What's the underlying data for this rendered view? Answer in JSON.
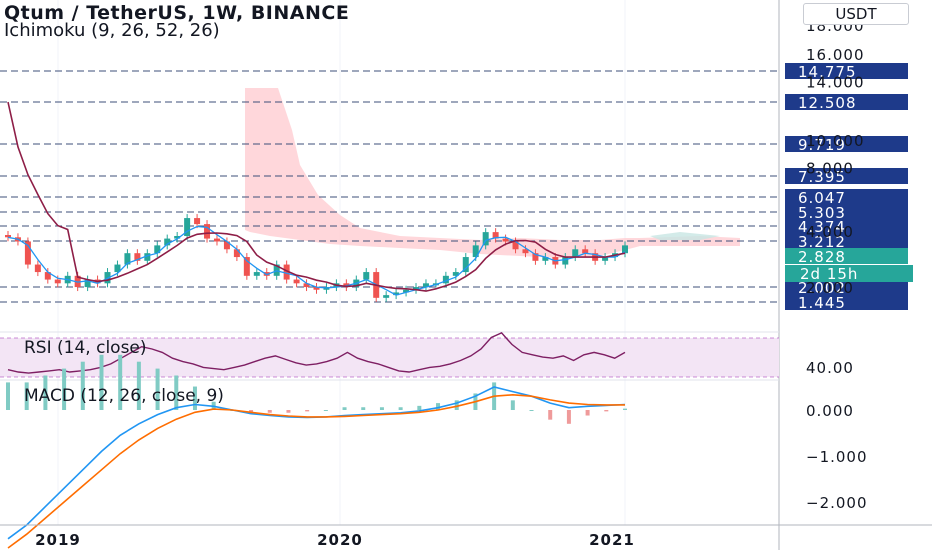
{
  "header": {
    "title": "Qtum / TetherUS, 1W, BINANCE",
    "indicator": "Ichimoku (9, 26, 52, 26)",
    "currency": "USDT"
  },
  "rsi": {
    "label": "RSI (14, close)",
    "tick": "40.00"
  },
  "macd": {
    "label": "MACD (12, 26, close, 9)"
  },
  "colors": {
    "cloud": "#ffcdd2",
    "rsi_band": "#f3e5f5",
    "tenkan": "#2196f3",
    "kijun": "#8e1e47",
    "bull": "#26a69a",
    "bear": "#ef5350",
    "label_bg": "#1e3a8a",
    "price_bg": "#26a69a",
    "macd_line": "#2196f3",
    "signal_line": "#ff6d00"
  },
  "chart_data": [
    {
      "type": "candlestick",
      "name": "Qtum / TetherUS weekly price with Ichimoku",
      "x_ticks": [
        "2019",
        "2020",
        "2021"
      ],
      "y_ticks": [
        "18.000",
        "16.000",
        "14.000",
        "10.000",
        "8.000",
        "4.000",
        "2.000"
      ],
      "levels": [
        "14.775",
        "12.508",
        "9.719",
        "7.395",
        "6.047",
        "5.303",
        "4.374",
        "3.212",
        "2.002",
        "1.445"
      ],
      "last_price": "2.828",
      "countdown": "2d 15h",
      "close_path": [
        3.5,
        3.2,
        2.6,
        2.4,
        2.2,
        2.1,
        2.3,
        2.0,
        2.2,
        2.1,
        2.4,
        2.6,
        2.9,
        2.7,
        2.9,
        3.1,
        3.4,
        3.6,
        4.9,
        4.5,
        3.4,
        3.2,
        3.0,
        2.8,
        2.3,
        2.4,
        2.3,
        2.6,
        2.2,
        2.1,
        2.0,
        1.9,
        2.0,
        2.1,
        2.0,
        2.2,
        2.4,
        1.6,
        1.7,
        1.8,
        1.9,
        2.0,
        2.1,
        2.1,
        2.3,
        2.4,
        2.8,
        3.1,
        3.9,
        3.4,
        3.2,
        3.0,
        2.9,
        2.7,
        2.8,
        2.6,
        2.8,
        3.0,
        2.9,
        2.7,
        2.8,
        2.9,
        3.1
      ]
    },
    {
      "type": "line",
      "name": "RSI",
      "y_ticks": [
        "40.00"
      ],
      "values": [
        40,
        38,
        37,
        38,
        39,
        40,
        38,
        39,
        40,
        42,
        45,
        50,
        55,
        60,
        58,
        55,
        50,
        47,
        45,
        42,
        41,
        40,
        42,
        44,
        47,
        50,
        52,
        49,
        46,
        44,
        45,
        47,
        50,
        55,
        50,
        47,
        45,
        42,
        39,
        38,
        40,
        42,
        43,
        45,
        48,
        52,
        58,
        68,
        72,
        62,
        55,
        53,
        51,
        50,
        52,
        48,
        53,
        55,
        53,
        50,
        55
      ]
    },
    {
      "type": "line",
      "name": "MACD",
      "y_ticks": [
        "0.000",
        "−1.000",
        "−2.000"
      ],
      "macd": [
        -2.8,
        -2.5,
        -2.1,
        -1.7,
        -1.3,
        -0.9,
        -0.55,
        -0.3,
        -0.1,
        0.05,
        0.12,
        0.08,
        0.0,
        -0.08,
        -0.12,
        -0.15,
        -0.16,
        -0.15,
        -0.12,
        -0.1,
        -0.08,
        -0.06,
        -0.02,
        0.05,
        0.15,
        0.3,
        0.5,
        0.4,
        0.3,
        0.15,
        0.05,
        0.08,
        0.1,
        0.12
      ],
      "signal": [
        -3.0,
        -2.7,
        -2.35,
        -2.0,
        -1.65,
        -1.3,
        -0.95,
        -0.65,
        -0.4,
        -0.2,
        -0.05,
        0.02,
        0.0,
        -0.05,
        -0.1,
        -0.13,
        -0.15,
        -0.15,
        -0.14,
        -0.12,
        -0.1,
        -0.08,
        -0.05,
        0.0,
        0.08,
        0.18,
        0.3,
        0.33,
        0.3,
        0.22,
        0.15,
        0.12,
        0.11,
        0.11
      ]
    }
  ]
}
